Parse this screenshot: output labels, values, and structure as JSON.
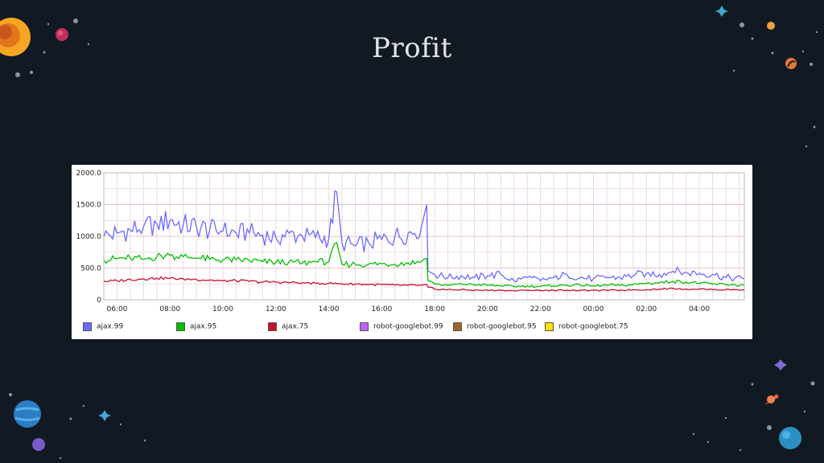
{
  "slide": {
    "title": "Profit"
  },
  "decor": {
    "icons": [
      "sun-icon",
      "planet-icon",
      "star-icon",
      "rocket-icon",
      "comet-icon",
      "earth-icon"
    ]
  },
  "chart_data": {
    "type": "line",
    "title": "",
    "xlabel": "",
    "ylabel": "",
    "ylim": [
      0,
      2000
    ],
    "y_ticks": [
      "0",
      "500.0",
      "1000.0",
      "1500.0",
      "2000.0"
    ],
    "x_ticks": [
      "06:00",
      "08:00",
      "10:00",
      "12:00",
      "14:00",
      "16:00",
      "18:00",
      "20:00",
      "22:00",
      "00:00",
      "02:00",
      "04:00"
    ],
    "x_range_hours": [
      5.5,
      29.7
    ],
    "grid": true,
    "legend_position": "bottom",
    "series": [
      {
        "name": "ajax.99",
        "color": "#6a6aff",
        "points": [
          [
            5.5,
            1000
          ],
          [
            6.0,
            1050
          ],
          [
            6.5,
            1100
          ],
          [
            7.0,
            1150
          ],
          [
            7.5,
            1200
          ],
          [
            8.0,
            1250
          ],
          [
            8.5,
            1180
          ],
          [
            9.0,
            1150
          ],
          [
            9.5,
            1100
          ],
          [
            10.0,
            1080
          ],
          [
            10.5,
            1050
          ],
          [
            11.0,
            1050
          ],
          [
            11.5,
            1020
          ],
          [
            12.0,
            980
          ],
          [
            12.5,
            1050
          ],
          [
            13.0,
            1000
          ],
          [
            13.5,
            980
          ],
          [
            14.0,
            960
          ],
          [
            14.3,
            1700
          ],
          [
            14.5,
            900
          ],
          [
            15.0,
            850
          ],
          [
            15.5,
            900
          ],
          [
            16.0,
            950
          ],
          [
            16.5,
            1000
          ],
          [
            17.0,
            1050
          ],
          [
            17.5,
            1150
          ],
          [
            17.7,
            1500
          ],
          [
            17.75,
            450
          ],
          [
            18.0,
            400
          ],
          [
            18.5,
            350
          ],
          [
            19.0,
            380
          ],
          [
            19.5,
            350
          ],
          [
            20.0,
            380
          ],
          [
            20.5,
            400
          ],
          [
            21.0,
            300
          ],
          [
            21.5,
            350
          ],
          [
            22.0,
            300
          ],
          [
            22.5,
            350
          ],
          [
            23.0,
            400
          ],
          [
            23.5,
            350
          ],
          [
            24.0,
            330
          ],
          [
            24.5,
            350
          ],
          [
            25.0,
            350
          ],
          [
            25.5,
            380
          ],
          [
            26.0,
            420
          ],
          [
            26.5,
            400
          ],
          [
            27.0,
            450
          ],
          [
            27.5,
            430
          ],
          [
            28.0,
            420
          ],
          [
            28.5,
            400
          ],
          [
            29.0,
            350
          ],
          [
            29.7,
            330
          ]
        ]
      },
      {
        "name": "ajax.95",
        "color": "#00c000",
        "points": [
          [
            5.5,
            620
          ],
          [
            6.0,
            650
          ],
          [
            6.5,
            660
          ],
          [
            7.0,
            640
          ],
          [
            7.5,
            680
          ],
          [
            8.0,
            700
          ],
          [
            8.5,
            680
          ],
          [
            9.0,
            660
          ],
          [
            9.5,
            640
          ],
          [
            10.0,
            630
          ],
          [
            10.5,
            630
          ],
          [
            11.0,
            620
          ],
          [
            11.5,
            600
          ],
          [
            12.0,
            590
          ],
          [
            12.5,
            600
          ],
          [
            13.0,
            580
          ],
          [
            13.5,
            600
          ],
          [
            14.0,
            600
          ],
          [
            14.3,
            900
          ],
          [
            14.5,
            560
          ],
          [
            15.0,
            560
          ],
          [
            15.5,
            560
          ],
          [
            16.0,
            570
          ],
          [
            16.5,
            560
          ],
          [
            17.0,
            580
          ],
          [
            17.5,
            600
          ],
          [
            17.7,
            650
          ],
          [
            17.75,
            300
          ],
          [
            18.0,
            250
          ],
          [
            18.5,
            230
          ],
          [
            19.0,
            250
          ],
          [
            19.5,
            240
          ],
          [
            20.0,
            230
          ],
          [
            20.5,
            220
          ],
          [
            21.0,
            210
          ],
          [
            21.5,
            220
          ],
          [
            22.0,
            210
          ],
          [
            22.5,
            220
          ],
          [
            23.0,
            230
          ],
          [
            23.5,
            230
          ],
          [
            24.0,
            220
          ],
          [
            24.5,
            230
          ],
          [
            25.0,
            230
          ],
          [
            25.5,
            240
          ],
          [
            26.0,
            260
          ],
          [
            26.5,
            270
          ],
          [
            27.0,
            290
          ],
          [
            27.5,
            280
          ],
          [
            28.0,
            260
          ],
          [
            28.5,
            250
          ],
          [
            29.0,
            240
          ],
          [
            29.7,
            230
          ]
        ]
      },
      {
        "name": "ajax.75",
        "color": "#c8102e",
        "points": [
          [
            5.5,
            290
          ],
          [
            6.0,
            300
          ],
          [
            6.5,
            320
          ],
          [
            7.0,
            330
          ],
          [
            7.5,
            340
          ],
          [
            8.0,
            340
          ],
          [
            8.5,
            330
          ],
          [
            9.0,
            320
          ],
          [
            9.5,
            310
          ],
          [
            10.0,
            300
          ],
          [
            10.5,
            300
          ],
          [
            11.0,
            290
          ],
          [
            11.5,
            280
          ],
          [
            12.0,
            280
          ],
          [
            12.5,
            270
          ],
          [
            13.0,
            270
          ],
          [
            13.5,
            260
          ],
          [
            14.0,
            260
          ],
          [
            14.5,
            250
          ],
          [
            15.0,
            250
          ],
          [
            15.5,
            240
          ],
          [
            16.0,
            240
          ],
          [
            16.5,
            230
          ],
          [
            17.0,
            230
          ],
          [
            17.5,
            230
          ],
          [
            17.7,
            240
          ],
          [
            17.75,
            200
          ],
          [
            18.0,
            170
          ],
          [
            18.5,
            160
          ],
          [
            19.0,
            160
          ],
          [
            19.5,
            150
          ],
          [
            20.0,
            150
          ],
          [
            20.5,
            150
          ],
          [
            21.0,
            140
          ],
          [
            21.5,
            150
          ],
          [
            22.0,
            150
          ],
          [
            22.5,
            150
          ],
          [
            23.0,
            150
          ],
          [
            23.5,
            150
          ],
          [
            24.0,
            150
          ],
          [
            24.5,
            150
          ],
          [
            25.0,
            150
          ],
          [
            25.5,
            160
          ],
          [
            26.0,
            160
          ],
          [
            26.5,
            170
          ],
          [
            27.0,
            180
          ],
          [
            27.5,
            170
          ],
          [
            28.0,
            170
          ],
          [
            28.5,
            160
          ],
          [
            29.0,
            160
          ],
          [
            29.7,
            160
          ]
        ]
      },
      {
        "name": "robot-googlebot.99",
        "color": "#c060ff",
        "points": []
      },
      {
        "name": "robot-googlebot.95",
        "color": "#a0642a",
        "points": []
      },
      {
        "name": "robot-googlebot.75",
        "color": "#ffe000",
        "points": []
      }
    ]
  }
}
